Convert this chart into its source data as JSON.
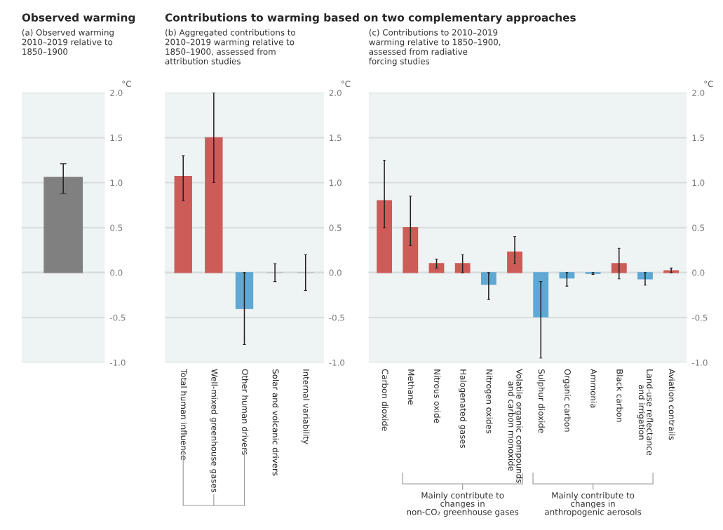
{
  "chart_data": [
    {
      "type": "bar",
      "title": "Observed warming",
      "subtitle": "(a) Observed warming\n2010–2019 relative to\n1850–1900",
      "ylabel": "°C",
      "categories": [
        null
      ],
      "values": [
        1.06
      ],
      "colors": [
        "#808080"
      ],
      "errors": [
        [
          0.88,
          1.21
        ]
      ],
      "ylim": [
        -1.0,
        2.0
      ],
      "yticks": [
        {
          "value": -1.0,
          "label": "-1.0"
        },
        {
          "value": -0.5,
          "label": "-0.5"
        },
        {
          "value": 0.0,
          "label": "0.0"
        },
        {
          "value": 0.5,
          "label": "0.5"
        },
        {
          "value": 1.0,
          "label": "1.0"
        },
        {
          "value": 1.5,
          "label": "1.5"
        },
        {
          "value": 2.0,
          "label": "2.0"
        }
      ],
      "grid": "y"
    },
    {
      "type": "bar",
      "title": "Contributions to warming based on two complementary approaches",
      "subtitle": "(b) Aggregated contributions to\n2010–2019 warming relative to\n1850–1900, assessed from\nattribution studies",
      "ylabel": "°C",
      "categories": [
        "Total human influence",
        "Well-mixed greenhouse gases",
        "Other human drivers",
        "Solar and volcanic drivers",
        "Internal variability"
      ],
      "values": [
        1.07,
        1.5,
        -0.4,
        0.0,
        0.0
      ],
      "colors": [
        "#cd5b57",
        "#cd5b57",
        "#5ea8d3",
        "#b8c0c2",
        "#b8c0c2"
      ],
      "errors": [
        [
          0.8,
          1.3
        ],
        [
          1.0,
          2.0
        ],
        [
          -0.8,
          0.0
        ],
        [
          -0.1,
          0.1
        ],
        [
          -0.2,
          0.2
        ]
      ],
      "ylim": [
        -1.0,
        2.0
      ],
      "yticks": [
        {
          "value": -1.0,
          "label": "-1.0"
        },
        {
          "value": -0.5,
          "label": "-0.5"
        },
        {
          "value": 0.0,
          "label": "0.0"
        },
        {
          "value": 0.5,
          "label": "0.5"
        },
        {
          "value": 1.0,
          "label": "1.0"
        },
        {
          "value": 1.5,
          "label": "1.5"
        },
        {
          "value": 2.0,
          "label": "2.0"
        }
      ],
      "grid": "y"
    },
    {
      "type": "bar",
      "subtitle": "(c) Contributions to 2010–2019\nwarming relative to 1850–1900,\nassessed from radiative\nforcing studies",
      "ylabel": "°C",
      "categories": [
        "Carbon dioxide",
        "Methane",
        "Nitrous oxide",
        "Halogenated gases",
        "Nitrogen oxides",
        "Volatile organic compounds\nand carbon monoxide",
        "Sulphur dioxide",
        "Organic carbon",
        "Ammonia",
        "Black carbon",
        "Land-use reflectance\nand irrigation",
        "Aviation contrails"
      ],
      "values": [
        0.8,
        0.5,
        0.1,
        0.1,
        -0.13,
        0.23,
        -0.49,
        -0.06,
        -0.01,
        0.1,
        -0.07,
        0.02
      ],
      "colors": [
        "#cd5b57",
        "#cd5b57",
        "#cd5b57",
        "#cd5b57",
        "#5ea8d3",
        "#cd5b57",
        "#5ea8d3",
        "#5ea8d3",
        "#5ea8d3",
        "#cd5b57",
        "#5ea8d3",
        "#cd5b57"
      ],
      "errors": [
        [
          0.5,
          1.25
        ],
        [
          0.3,
          0.85
        ],
        [
          0.05,
          0.15
        ],
        [
          0.0,
          0.2
        ],
        [
          -0.3,
          0.0
        ],
        [
          0.1,
          0.4
        ],
        [
          -0.95,
          -0.1
        ],
        [
          -0.15,
          0.0
        ],
        [
          -0.02,
          0.0
        ],
        [
          -0.07,
          0.27
        ],
        [
          -0.14,
          0.0
        ],
        [
          0.0,
          0.05
        ]
      ],
      "ylim": [
        -1.0,
        2.0
      ],
      "yticks": [
        {
          "value": -1.0,
          "label": "-1.0"
        },
        {
          "value": -0.5,
          "label": "-0.5"
        },
        {
          "value": 0.0,
          "label": "0.0"
        },
        {
          "value": 0.5,
          "label": "0.5"
        },
        {
          "value": 1.0,
          "label": "1.0"
        },
        {
          "value": 1.5,
          "label": "1.5"
        },
        {
          "value": 2.0,
          "label": "2.0"
        }
      ],
      "grid": "y",
      "annotations": [
        "Mainly contribute to\nchanges in\nnon-CO₂ greenhouse gases",
        "Mainly contribute to\nchanges in\nanthropogenic aerosols"
      ]
    }
  ]
}
